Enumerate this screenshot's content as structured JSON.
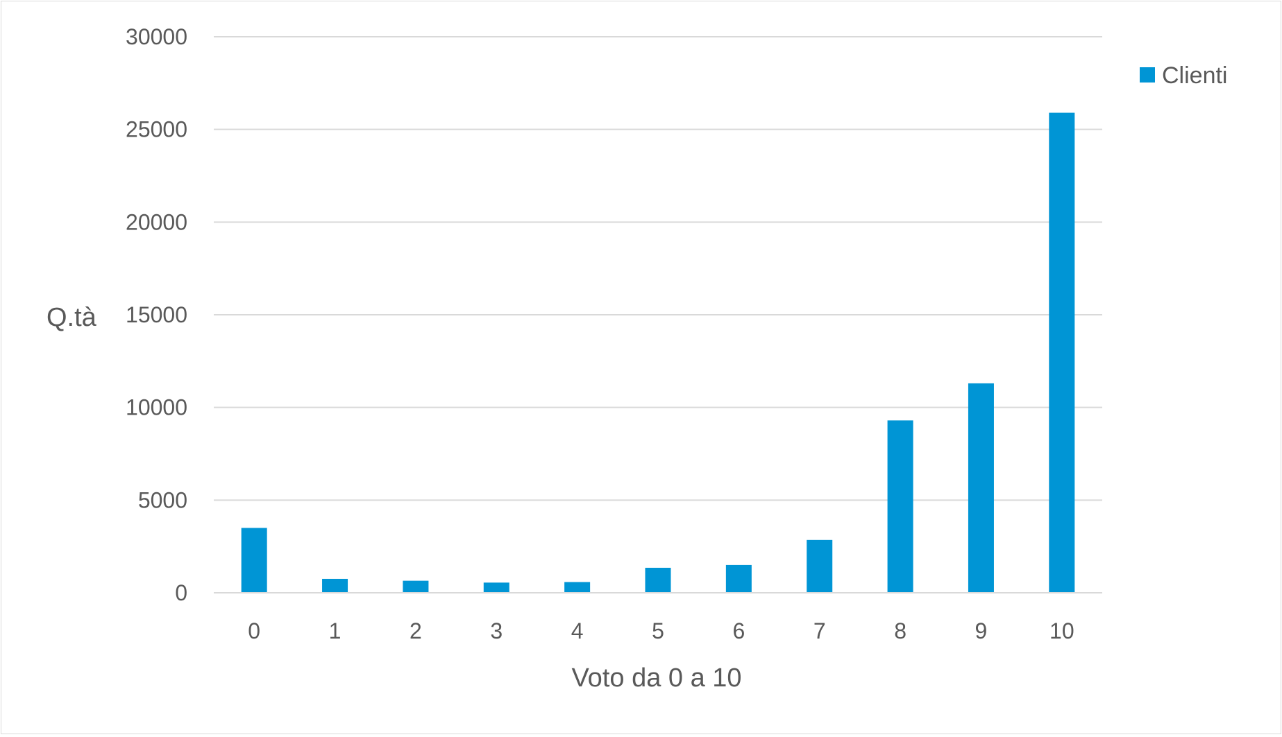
{
  "chart_data": {
    "type": "bar",
    "categories": [
      "0",
      "1",
      "2",
      "3",
      "4",
      "5",
      "6",
      "7",
      "8",
      "9",
      "10"
    ],
    "series": [
      {
        "name": "Clienti",
        "color": "#0095D5",
        "values": [
          3500,
          750,
          650,
          550,
          580,
          1350,
          1500,
          2850,
          9300,
          11300,
          25900
        ]
      }
    ],
    "xlabel": "Voto da 0 a 10",
    "ylabel": "Q.tà",
    "ylim": [
      0,
      30000
    ],
    "yticks": [
      "0",
      "5000",
      "10000",
      "15000",
      "20000",
      "25000",
      "30000"
    ],
    "grid": true,
    "gridline_color": "#d9d9d9",
    "legend_position": "top-right"
  }
}
